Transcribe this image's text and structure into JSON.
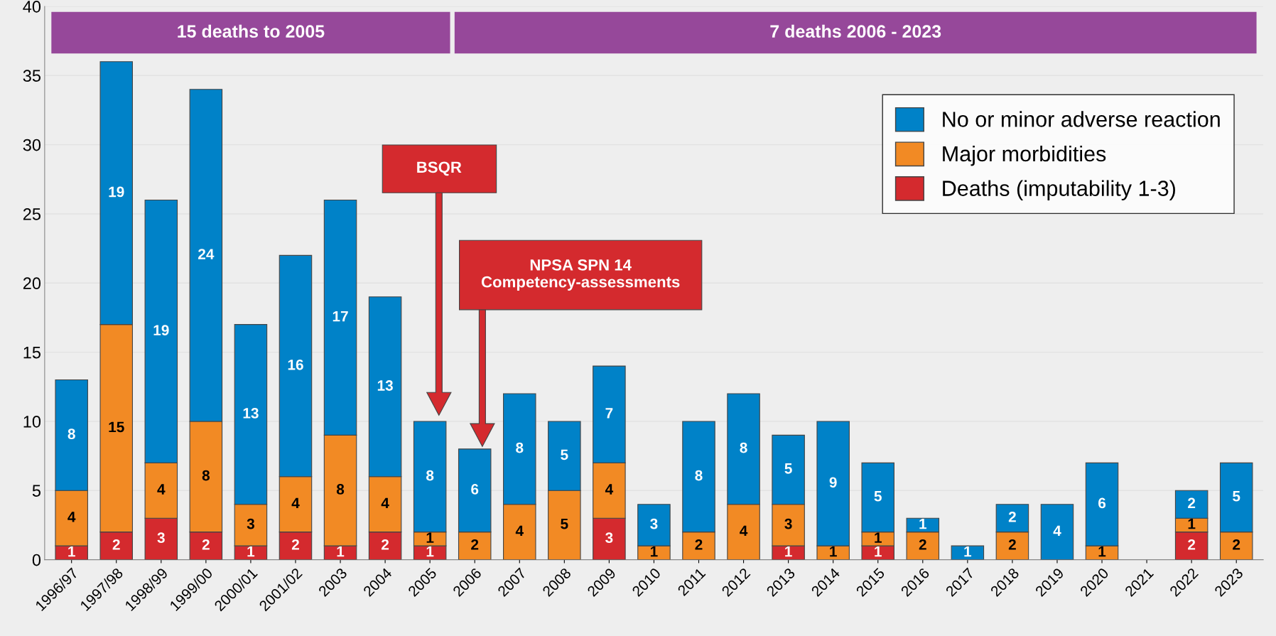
{
  "chart_data": {
    "type": "bar",
    "stacked": true,
    "categories": [
      "1996/97",
      "1997/98",
      "1998/99",
      "1999/00",
      "2000/01",
      "2001/02",
      "2003",
      "2004",
      "2005",
      "2006",
      "2007",
      "2008",
      "2009",
      "2010",
      "2011",
      "2012",
      "2013",
      "2014",
      "2015",
      "2016",
      "2017",
      "2018",
      "2019",
      "2020",
      "2021",
      "2022",
      "2023"
    ],
    "series": [
      {
        "name": "Deaths (imputability 1-3)",
        "color": "#d42a2e",
        "values": [
          1,
          2,
          3,
          2,
          1,
          2,
          1,
          2,
          1,
          0,
          0,
          0,
          3,
          0,
          0,
          0,
          1,
          0,
          1,
          0,
          0,
          0,
          0,
          0,
          0,
          2,
          0
        ],
        "value_labels": [
          "1",
          "2",
          "3",
          "2",
          "1",
          "2",
          "1",
          "2",
          "1",
          null,
          null,
          null,
          "3",
          null,
          null,
          null,
          "1",
          null,
          "1",
          null,
          null,
          null,
          null,
          null,
          null,
          "2",
          null
        ]
      },
      {
        "name": "Major morbidities",
        "color": "#f28a24",
        "values": [
          4,
          15,
          4,
          8,
          3,
          4,
          8,
          4,
          1,
          2,
          4,
          5,
          4,
          1,
          2,
          4,
          3,
          1,
          1,
          2,
          0,
          2,
          0,
          1,
          0,
          1,
          2
        ],
        "value_labels": [
          "4",
          "15",
          "4",
          "8",
          "3",
          "4",
          "8",
          "4",
          "1",
          "2",
          "4",
          "5",
          "4",
          "1",
          "2",
          "4",
          "3",
          "1",
          "1",
          "2",
          null,
          "2",
          null,
          "1",
          null,
          "1",
          "2"
        ]
      },
      {
        "name": "No or minor adverse reaction",
        "color": "#0082c8",
        "values": [
          8,
          19,
          19,
          24,
          13,
          16,
          17,
          13,
          8,
          6,
          8,
          5,
          7,
          3,
          8,
          8,
          5,
          9,
          5,
          1,
          1,
          2,
          4,
          6,
          0,
          2,
          5
        ],
        "value_labels": [
          "8",
          "19",
          "19",
          "24",
          "13",
          "16",
          "17",
          "13",
          "8",
          "6",
          "8",
          "5",
          "7",
          "3",
          "8",
          "8",
          "5",
          "9",
          "5",
          "1",
          "1",
          "2",
          "4",
          "6",
          null,
          "2",
          "5"
        ]
      }
    ],
    "ylim": [
      0,
      40
    ],
    "yticks": [
      0,
      5,
      10,
      15,
      20,
      25,
      30,
      35,
      40
    ],
    "grid": "y",
    "legend": "top right",
    "bands": [
      {
        "axis": "x",
        "from": "1996/97",
        "to": "2005",
        "label": "15 deaths to 2005",
        "color": "#96489a"
      },
      {
        "axis": "x",
        "from": "2006",
        "to": "2023",
        "label": "7 deaths 2006 - 2023",
        "color": "#96489a"
      }
    ],
    "annotations": [
      "BSQR",
      "NPSA SPN 14\nCompetency-assessments"
    ]
  }
}
